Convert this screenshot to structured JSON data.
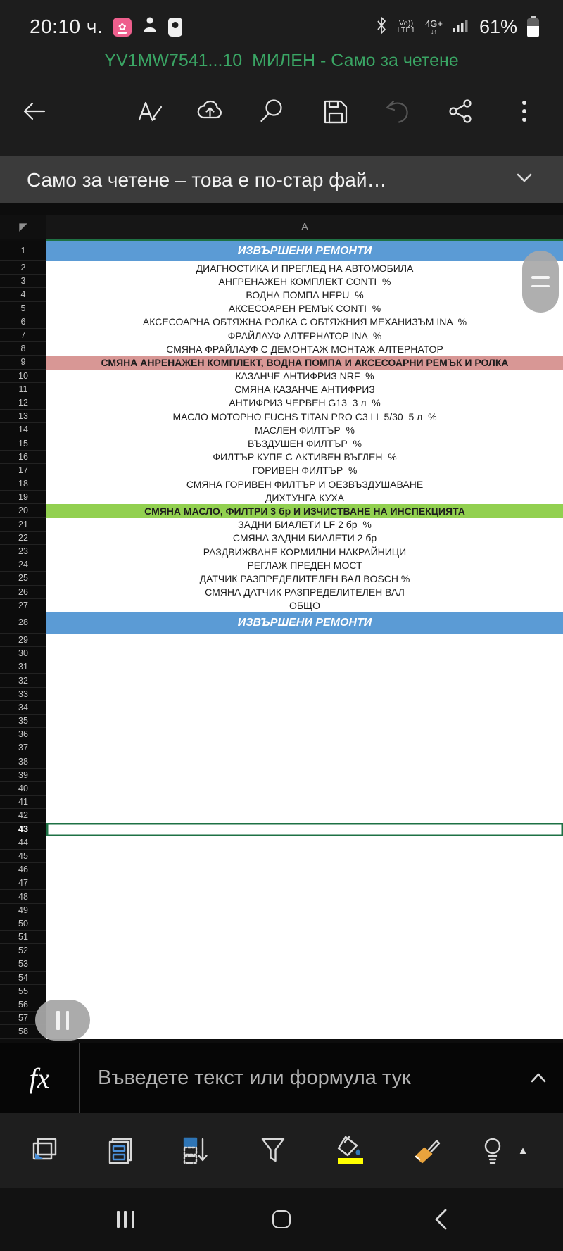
{
  "status_bar": {
    "time": "20:10 ч.",
    "volte_line1": "Vo))",
    "volte_line2": "LTE1",
    "network": "4G+",
    "network_arrows": "↓↑",
    "battery_percent": "61%",
    "flower_glyph": "✿",
    "icons": [
      "flower-app-icon",
      "person-icon",
      "device-icon",
      "bluetooth-icon",
      "signal-icon",
      "battery-icon"
    ]
  },
  "document": {
    "title": "YV1MW7541...10  МИЛЕН - Само за четене"
  },
  "toolbar": {
    "icons": [
      "back-arrow",
      "format-edit",
      "cloud-upload",
      "search",
      "save",
      "undo",
      "share",
      "more-options"
    ]
  },
  "banner": {
    "text": "Само за четене – това е по-стар фай…"
  },
  "sheet": {
    "column_header": "A",
    "select_all_glyph": "◤",
    "selected_cell": "A43",
    "selected_row": 43,
    "visible_row_count": 58,
    "rows": [
      {
        "n": 1,
        "text": "ИЗВЪРШЕНИ РЕМОНТИ",
        "style": "blue"
      },
      {
        "n": 2,
        "text": "ДИАГНОСТИКА И ПРЕГЛЕД НА АВТОМОБИЛА"
      },
      {
        "n": 3,
        "text": "АНГРЕНАЖЕН КОМПЛЕКТ CONTI  %"
      },
      {
        "n": 4,
        "text": "ВОДНА ПОМПА HEPU  %"
      },
      {
        "n": 5,
        "text": "АКСЕСОАРЕН РЕМЪК CONTI  %"
      },
      {
        "n": 6,
        "text": "АКСЕСОАРНА ОБТЯЖНА РОЛКА С ОБТЯЖНИЯ МЕХАНИЗЪМ INA  %"
      },
      {
        "n": 7,
        "text": "ФРАЙЛАУФ АЛТЕРНАТОР INA  %"
      },
      {
        "n": 8,
        "text": "СМЯНА ФРАЙЛАУФ С ДЕМОНТАЖ МОНТАЖ АЛТЕРНАТОР"
      },
      {
        "n": 9,
        "text": "СМЯНА АНРЕНАЖЕН КОМПЛЕКТ, ВОДНА ПОМПА И АКСЕСОАРНИ РЕМЪК И РОЛКА",
        "style": "pink"
      },
      {
        "n": 10,
        "text": "КАЗАНЧЕ АНТИФРИЗ NRF  %"
      },
      {
        "n": 11,
        "text": "СМЯНА КАЗАНЧЕ АНТИФРИЗ"
      },
      {
        "n": 12,
        "text": "АНТИФРИЗ ЧЕРВЕН G13  3 л  %"
      },
      {
        "n": 13,
        "text": "МАСЛО МОТОРНО FUCHS TITAN PRO C3 LL 5/30  5 л  %"
      },
      {
        "n": 14,
        "text": "МАСЛЕН ФИЛТЪР  %"
      },
      {
        "n": 15,
        "text": "ВЪЗДУШЕН ФИЛТЪР  %"
      },
      {
        "n": 16,
        "text": "ФИЛТЪР КУПЕ С АКТИВЕН ВЪГЛЕН  %"
      },
      {
        "n": 17,
        "text": "ГОРИВЕН ФИЛТЪР  %"
      },
      {
        "n": 18,
        "text": "СМЯНА ГОРИВЕН ФИЛТЪР И ОЕЗВЪЗДУШАВАНЕ"
      },
      {
        "n": 19,
        "text": "ДИХТУНГА КУХА"
      },
      {
        "n": 20,
        "text": "СМЯНА МАСЛО, ФИЛТРИ 3 бр И ИЗЧИСТВАНЕ НА ИНСПЕКЦИЯТА",
        "style": "green"
      },
      {
        "n": 21,
        "text": "ЗАДНИ БИАЛЕТИ LF 2 бр  %"
      },
      {
        "n": 22,
        "text": "СМЯНА ЗАДНИ БИАЛЕТИ 2 бр"
      },
      {
        "n": 23,
        "text": "РАЗДВИЖВАНЕ КОРМИЛНИ НАКРАЙНИЦИ"
      },
      {
        "n": 24,
        "text": "РЕГЛАЖ ПРЕДЕН МОСТ"
      },
      {
        "n": 25,
        "text": "ДАТЧИК РАЗПРЕДЕЛИТЕЛЕН ВАЛ BOSCH %"
      },
      {
        "n": 26,
        "text": "СМЯНА ДАТЧИК РАЗПРЕДЕЛИТЕЛЕН ВАЛ"
      },
      {
        "n": 27,
        "text": "ОБЩО"
      },
      {
        "n": 28,
        "text": "ИЗВЪРШЕНИ РЕМОНТИ",
        "style": "blue"
      }
    ]
  },
  "formula_bar": {
    "fx_label": "fx",
    "placeholder": "Въведете текст или формула тук"
  },
  "bottom_toolbar": {
    "icons": [
      "sheets",
      "card-view",
      "fill-down",
      "filter",
      "fill-color",
      "format-brush",
      "lightbulb",
      "expand-ribbon"
    ],
    "fill_color_current": "#ffff00",
    "expand_glyph": "▲"
  },
  "nav_bar": {
    "buttons": [
      "recents",
      "home",
      "back"
    ]
  },
  "colors": {
    "accent_green": "#3aa564",
    "header_blue": "#5b9bd5",
    "pink_row": "#d89795",
    "green_row": "#92d050",
    "selection_green": "#1e7145",
    "banner_gray": "#3b3b3b"
  }
}
